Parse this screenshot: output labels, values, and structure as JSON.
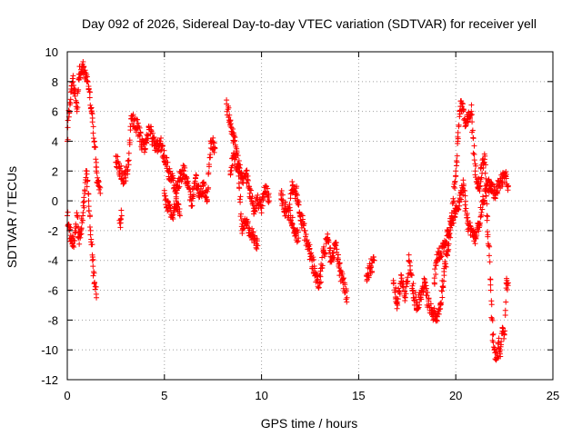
{
  "chart_data": {
    "type": "scatter",
    "title": "Day 092 of 2026, Sidereal Day-to-day VTEC variation (SDTVAR) for receiver yell",
    "xlabel": "GPS time / hours",
    "ylabel": "SDTVAR / TECUs",
    "xlim": [
      0,
      25
    ],
    "ylim": [
      -12,
      10
    ],
    "xticks": [
      0,
      5,
      10,
      15,
      20,
      25
    ],
    "yticks": [
      -12,
      -10,
      -8,
      -6,
      -4,
      -2,
      0,
      2,
      4,
      6,
      8,
      10
    ],
    "grid": true,
    "marker": "+",
    "color": "#ff0000",
    "series": [
      {
        "name": "SDTVAR",
        "trace": [
          [
            0.0,
            4.0
          ],
          [
            0.1,
            6.0
          ],
          [
            0.2,
            7.5
          ],
          [
            0.3,
            8.0
          ],
          [
            0.4,
            7.2
          ],
          [
            0.5,
            6.0
          ],
          [
            0.6,
            8.5
          ],
          [
            0.7,
            8.8
          ],
          [
            0.8,
            9.0
          ],
          [
            0.9,
            8.6
          ],
          [
            1.0,
            8.0
          ],
          [
            1.1,
            7.5
          ],
          [
            1.25,
            6.0
          ],
          [
            1.4,
            4.0
          ],
          [
            1.5,
            2.0
          ],
          [
            1.6,
            1.0
          ],
          [
            1.7,
            0.5
          ],
          [
            2.5,
            3.0
          ],
          [
            2.7,
            2.0
          ],
          [
            2.9,
            1.5
          ],
          [
            3.1,
            2.0
          ],
          [
            3.3,
            5.5
          ],
          [
            3.6,
            5.0
          ],
          [
            3.8,
            4.0
          ],
          [
            4.0,
            3.5
          ],
          [
            4.2,
            5.0
          ],
          [
            4.4,
            4.0
          ],
          [
            4.6,
            3.5
          ],
          [
            4.8,
            4.0
          ],
          [
            5.0,
            3.0
          ],
          [
            5.2,
            2.0
          ],
          [
            5.4,
            1.5
          ],
          [
            5.6,
            0.5
          ],
          [
            5.8,
            1.5
          ],
          [
            6.0,
            2.0
          ],
          [
            6.2,
            1.0
          ],
          [
            6.4,
            0.0
          ],
          [
            6.6,
            1.5
          ],
          [
            6.8,
            0.5
          ],
          [
            7.0,
            1.0
          ],
          [
            7.2,
            0.0
          ],
          [
            7.4,
            4.0
          ],
          [
            7.6,
            3.5
          ],
          [
            8.2,
            6.5
          ],
          [
            8.4,
            5.0
          ],
          [
            8.6,
            4.0
          ],
          [
            8.8,
            2.5
          ],
          [
            9.0,
            1.5
          ],
          [
            9.2,
            2.0
          ],
          [
            9.4,
            0.5
          ],
          [
            9.6,
            -0.5
          ],
          [
            9.8,
            0.0
          ],
          [
            10.0,
            -0.5
          ],
          [
            10.2,
            1.0
          ],
          [
            10.4,
            0.0
          ],
          [
            11.0,
            0.5
          ],
          [
            11.2,
            -0.5
          ],
          [
            11.4,
            -1.0
          ],
          [
            11.6,
            1.0
          ],
          [
            11.8,
            0.5
          ],
          [
            12.0,
            -1.0
          ],
          [
            12.2,
            -2.0
          ],
          [
            12.4,
            -3.0
          ],
          [
            12.6,
            -4.0
          ],
          [
            12.8,
            -5.0
          ],
          [
            13.0,
            -5.5
          ],
          [
            13.2,
            -3.5
          ],
          [
            13.4,
            -2.5
          ],
          [
            13.6,
            -4.0
          ],
          [
            13.8,
            -3.0
          ],
          [
            14.0,
            -4.5
          ],
          [
            14.2,
            -5.5
          ],
          [
            14.4,
            -6.5
          ],
          [
            15.4,
            -5.0
          ],
          [
            15.6,
            -4.5
          ],
          [
            15.8,
            -4.0
          ],
          [
            16.8,
            -5.5
          ],
          [
            17.0,
            -7.0
          ],
          [
            17.2,
            -5.0
          ],
          [
            17.4,
            -6.5
          ],
          [
            17.6,
            -4.0
          ],
          [
            17.8,
            -6.0
          ],
          [
            18.0,
            -7.0
          ],
          [
            18.2,
            -6.5
          ],
          [
            18.4,
            -5.5
          ],
          [
            18.6,
            -7.0
          ],
          [
            18.8,
            -7.5
          ],
          [
            19.0,
            -8.0
          ],
          [
            19.2,
            -7.0
          ],
          [
            19.4,
            -5.0
          ],
          [
            19.6,
            -3.0
          ],
          [
            19.8,
            -1.0
          ],
          [
            20.0,
            2.0
          ],
          [
            20.1,
            4.0
          ],
          [
            20.2,
            6.0
          ],
          [
            20.35,
            6.5
          ],
          [
            20.5,
            5.0
          ],
          [
            20.65,
            5.5
          ],
          [
            20.8,
            6.0
          ],
          [
            21.0,
            2.0
          ],
          [
            21.2,
            1.0
          ],
          [
            21.4,
            2.5
          ],
          [
            21.5,
            3.0
          ],
          [
            21.6,
            -1.0
          ],
          [
            21.7,
            -3.0
          ],
          [
            21.8,
            -6.0
          ],
          [
            21.9,
            -9.0
          ],
          [
            22.0,
            -10.0
          ],
          [
            22.1,
            -10.5
          ],
          [
            22.2,
            -9.5
          ],
          [
            22.3,
            -10.0
          ],
          [
            22.4,
            -8.5
          ],
          [
            22.5,
            -9.0
          ],
          [
            22.6,
            -5.5
          ],
          [
            22.7,
            -5.5
          ]
        ],
        "trace2": [
          [
            0.0,
            -1.0
          ],
          [
            0.1,
            -2.0
          ],
          [
            0.2,
            -2.5
          ],
          [
            0.3,
            -3.0
          ],
          [
            0.4,
            -2.0
          ],
          [
            0.5,
            -1.0
          ],
          [
            0.6,
            -2.5
          ],
          [
            0.7,
            -2.0
          ],
          [
            0.8,
            -1.0
          ],
          [
            0.9,
            0.5
          ],
          [
            1.0,
            2.0
          ],
          [
            1.1,
            0.0
          ],
          [
            1.2,
            -2.0
          ],
          [
            1.3,
            -4.0
          ],
          [
            1.4,
            -5.5
          ],
          [
            1.5,
            -6.5
          ],
          [
            2.7,
            -1.5
          ],
          [
            2.8,
            -1.0
          ],
          [
            5.0,
            0.5
          ],
          [
            5.2,
            -0.5
          ],
          [
            5.4,
            -1.0
          ],
          [
            5.6,
            0.0
          ],
          [
            5.8,
            -1.0
          ],
          [
            8.4,
            2.0
          ],
          [
            8.6,
            3.0
          ],
          [
            8.8,
            2.0
          ],
          [
            9.0,
            -2.0
          ],
          [
            9.2,
            -1.5
          ],
          [
            9.6,
            -2.5
          ],
          [
            9.8,
            -3.0
          ],
          [
            11.5,
            -1.0
          ],
          [
            11.7,
            -2.0
          ],
          [
            11.9,
            -2.5
          ],
          [
            18.9,
            -5.5
          ],
          [
            19.0,
            -4.0
          ],
          [
            19.2,
            -3.5
          ],
          [
            19.4,
            -3.0
          ],
          [
            19.6,
            -2.0
          ],
          [
            19.8,
            -1.5
          ],
          [
            20.0,
            -0.5
          ],
          [
            20.2,
            0.0
          ],
          [
            20.4,
            1.0
          ],
          [
            20.6,
            -1.5
          ],
          [
            20.8,
            -2.0
          ],
          [
            21.0,
            -2.5
          ],
          [
            21.2,
            -1.5
          ],
          [
            21.4,
            0.0
          ],
          [
            21.6,
            1.0
          ],
          [
            21.8,
            1.0
          ],
          [
            22.0,
            0.5
          ],
          [
            22.2,
            1.0
          ],
          [
            22.4,
            1.5
          ],
          [
            22.6,
            1.5
          ],
          [
            22.7,
            1.0
          ]
        ]
      }
    ]
  }
}
